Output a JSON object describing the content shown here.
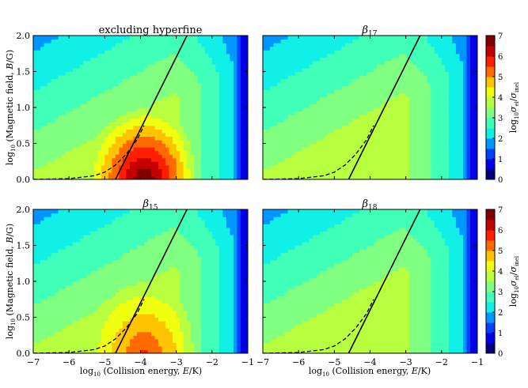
{
  "figure": {
    "cmap": [
      "#00007f",
      "#0000e6",
      "#0041ff",
      "#0096ff",
      "#10f0e6",
      "#40ffb8",
      "#80ff80",
      "#b8ff40",
      "#f0ff10",
      "#ffc400",
      "#ff6a00",
      "#ff1d00",
      "#c40000",
      "#7f0000"
    ]
  },
  "chart_data": [
    {
      "type": "contour",
      "title": "excluding hyperfine",
      "xlabel": "",
      "ylabel": "log10 (Magnetic field, B/G)",
      "xlim": [
        -7,
        -1
      ],
      "ylim": [
        0,
        2
      ],
      "xticks": [],
      "yticks": [
        "0.0",
        "0.5",
        "1.0",
        "1.5",
        "2.0"
      ],
      "max_level": 7,
      "description_levels": [
        0.5,
        1,
        1.5,
        2,
        2.5,
        3,
        3.5,
        4,
        4.5,
        5,
        5.5,
        6,
        6.5
      ],
      "solid_line": [
        [
          -4.7,
          0.0
        ],
        [
          -2.7,
          2.0
        ]
      ],
      "dashed_line": [
        [
          -7,
          0.0
        ],
        [
          -6,
          0.01
        ],
        [
          -5.3,
          0.05
        ],
        [
          -5,
          0.1
        ],
        [
          -4.7,
          0.2
        ],
        [
          -4.4,
          0.35
        ],
        [
          -4.1,
          0.55
        ],
        [
          -3.9,
          0.75
        ]
      ]
    },
    {
      "type": "contour",
      "title": "β17",
      "xlabel": "",
      "ylabel": "",
      "xlim": [
        -7,
        -1
      ],
      "ylim": [
        0,
        2
      ],
      "xticks": [],
      "yticks": [],
      "max_level": 3.5,
      "solid_line": [
        [
          -4.6,
          0.0
        ],
        [
          -2.6,
          2.0
        ]
      ],
      "dashed_line": [
        [
          -7,
          0.0
        ],
        [
          -6,
          0.01
        ],
        [
          -5.3,
          0.05
        ],
        [
          -5,
          0.1
        ],
        [
          -4.7,
          0.2
        ],
        [
          -4.4,
          0.35
        ],
        [
          -4.1,
          0.55
        ],
        [
          -3.9,
          0.75
        ]
      ]
    },
    {
      "type": "contour",
      "title": "β15",
      "xlabel": "log10 (Collision energy, E/K)",
      "ylabel": "log10 (Magnetic field, B/G)",
      "xlim": [
        -7,
        -1
      ],
      "ylim": [
        0,
        2
      ],
      "xticks": [
        "−7",
        "−6",
        "−5",
        "−4",
        "−3",
        "−2",
        "−1"
      ],
      "yticks": [
        "0.0",
        "0.5",
        "1.0",
        "1.5",
        "2.0"
      ],
      "max_level": 5.5,
      "solid_line": [
        [
          -4.7,
          0.0
        ],
        [
          -2.7,
          2.0
        ]
      ],
      "dashed_line": [
        [
          -7,
          0.0
        ],
        [
          -6,
          0.01
        ],
        [
          -5.3,
          0.05
        ],
        [
          -5,
          0.1
        ],
        [
          -4.7,
          0.2
        ],
        [
          -4.4,
          0.35
        ],
        [
          -4.1,
          0.55
        ],
        [
          -3.9,
          0.75
        ]
      ]
    },
    {
      "type": "contour",
      "title": "β18",
      "xlabel": "log10 (Collision energy, E/K)",
      "ylabel": "",
      "xlim": [
        -7,
        -1
      ],
      "ylim": [
        0,
        2
      ],
      "xticks": [
        "−7",
        "−6",
        "−5",
        "−4",
        "−3",
        "−2",
        "−1"
      ],
      "yticks": [],
      "max_level": 3.5,
      "solid_line": [
        [
          -4.6,
          0.0
        ],
        [
          -2.6,
          2.0
        ]
      ],
      "dashed_line": [
        [
          -7,
          0.0
        ],
        [
          -6,
          0.01
        ],
        [
          -5.3,
          0.05
        ],
        [
          -5,
          0.1
        ],
        [
          -4.7,
          0.2
        ],
        [
          -4.4,
          0.35
        ],
        [
          -4.1,
          0.55
        ],
        [
          -3.9,
          0.75
        ]
      ]
    }
  ],
  "colorbars": [
    {
      "label": "log10 σel/σinel",
      "ticks": [
        "0",
        "1",
        "2",
        "3",
        "4",
        "5",
        "6",
        "7"
      ],
      "range": [
        0,
        7
      ]
    },
    {
      "label": "log10 σel/σinel",
      "ticks": [
        "0",
        "1",
        "2",
        "3",
        "4",
        "5",
        "6",
        "7"
      ],
      "range": [
        0,
        7
      ]
    }
  ],
  "labels": {
    "log": "log",
    "sub10": "10",
    "ylab_rest": " (Magnetic field, ",
    "ylab_unit": "/G)",
    "xlab_rest": " (Collision energy, ",
    "xlab_unit": "/K)",
    "B": "B",
    "E": "E",
    "beta": "β",
    "sigma": "σ",
    "el": "el",
    "inel": "inel",
    "slash": "/"
  }
}
